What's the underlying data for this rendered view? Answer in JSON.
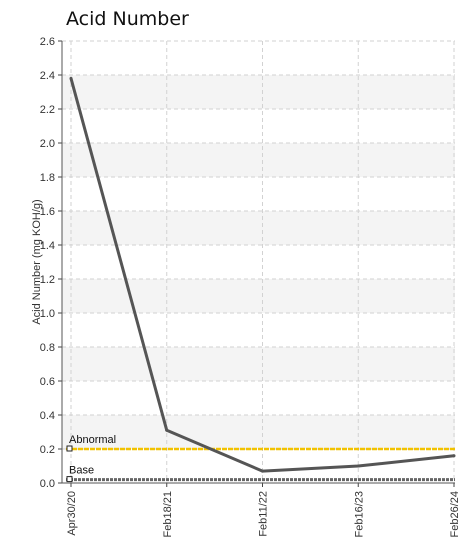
{
  "chart_data": {
    "type": "line",
    "title": "Acid Number",
    "ylabel": "Acid Number (mg KOH/g)",
    "xlabel": "",
    "categories": [
      "Apr30/20",
      "Feb18/21",
      "Feb11/22",
      "Feb16/23",
      "Feb26/24"
    ],
    "series": [
      {
        "values": [
          2.38,
          0.31,
          0.07,
          0.1,
          0.16
        ],
        "color": "#555555"
      }
    ],
    "ylim": [
      0.0,
      2.6
    ],
    "yticks": [
      "0.0",
      "0.2",
      "0.4",
      "0.6",
      "0.8",
      "1.0",
      "1.2",
      "1.4",
      "1.6",
      "1.8",
      "2.0",
      "2.2",
      "2.4",
      "2.6"
    ],
    "reference_lines": [
      {
        "label": "Abnormal",
        "value": 0.2,
        "color": "#f2c200"
      },
      {
        "label": "Base",
        "value": 0.02,
        "color": "#666666"
      }
    ],
    "grid": true,
    "alternating_bands": true
  }
}
